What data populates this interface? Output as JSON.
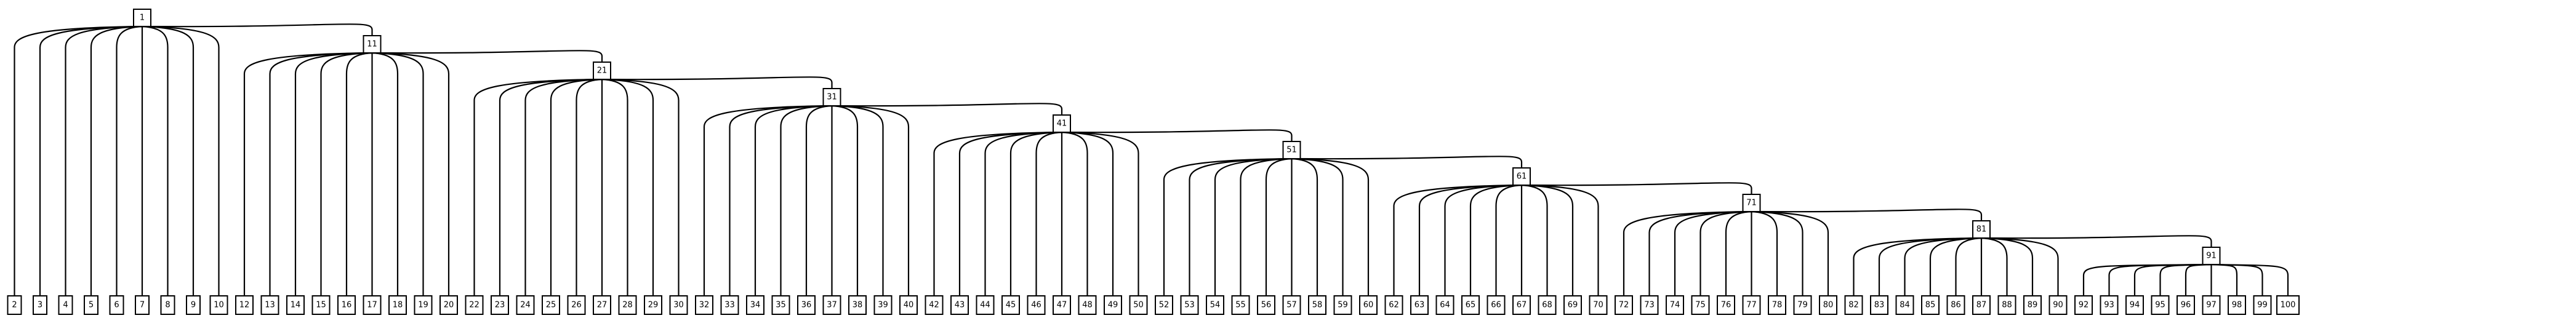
{
  "colors": {
    "background": "#ffffff",
    "line": "#000000",
    "node_fill": "#ffffff",
    "text": "#000000"
  },
  "tree": {
    "root": "1",
    "groups": [
      {
        "parent": "1",
        "children": [
          "2",
          "3",
          "4",
          "5",
          "6",
          "7",
          "8",
          "9",
          "10",
          "11"
        ]
      },
      {
        "parent": "11",
        "children": [
          "12",
          "13",
          "14",
          "15",
          "16",
          "17",
          "18",
          "19",
          "20",
          "21"
        ]
      },
      {
        "parent": "21",
        "children": [
          "22",
          "23",
          "24",
          "25",
          "26",
          "27",
          "28",
          "29",
          "30",
          "31"
        ]
      },
      {
        "parent": "31",
        "children": [
          "32",
          "33",
          "34",
          "35",
          "36",
          "37",
          "38",
          "39",
          "40",
          "41"
        ]
      },
      {
        "parent": "41",
        "children": [
          "42",
          "43",
          "44",
          "45",
          "46",
          "47",
          "48",
          "49",
          "50",
          "51"
        ]
      },
      {
        "parent": "51",
        "children": [
          "52",
          "53",
          "54",
          "55",
          "56",
          "57",
          "58",
          "59",
          "60",
          "61"
        ]
      },
      {
        "parent": "61",
        "children": [
          "62",
          "63",
          "64",
          "65",
          "66",
          "67",
          "68",
          "69",
          "70",
          "71"
        ]
      },
      {
        "parent": "71",
        "children": [
          "72",
          "73",
          "74",
          "75",
          "76",
          "77",
          "78",
          "79",
          "80",
          "81"
        ]
      },
      {
        "parent": "81",
        "children": [
          "82",
          "83",
          "84",
          "85",
          "86",
          "87",
          "88",
          "89",
          "90",
          "91"
        ]
      },
      {
        "parent": "91",
        "children": [
          "92",
          "93",
          "94",
          "95",
          "96",
          "97",
          "98",
          "99",
          "100"
        ]
      }
    ]
  }
}
